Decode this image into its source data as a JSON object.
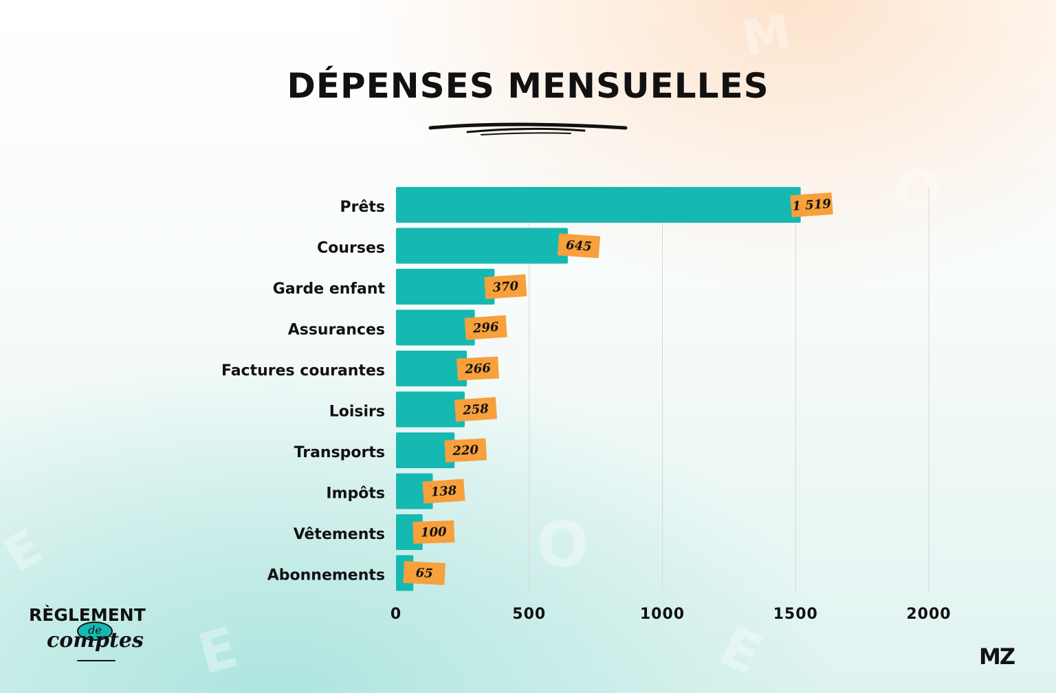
{
  "chart_data": {
    "type": "bar",
    "orientation": "horizontal",
    "title": "DÉPENSES MENSUELLES",
    "categories": [
      "Prêts",
      "Courses",
      "Garde enfant",
      "Assurances",
      "Factures courantes",
      "Loisirs",
      "Transports",
      "Impôts",
      "Vêtements",
      "Abonnements"
    ],
    "values": [
      1519,
      645,
      370,
      296,
      266,
      258,
      220,
      138,
      100,
      65
    ],
    "value_labels": [
      "1 519",
      "645",
      "370",
      "296",
      "266",
      "258",
      "220",
      "138",
      "100",
      "65"
    ],
    "xlim": [
      0,
      2000
    ],
    "xticks": [
      0,
      500,
      1000,
      1500,
      2000
    ],
    "xtick_labels": [
      "0",
      "500",
      "1000",
      "1500",
      "2000"
    ],
    "xlabel": "",
    "ylabel": "",
    "grid": true,
    "colors": {
      "bar": "#15b9b1",
      "value_tag": "#f7a03c"
    }
  },
  "branding": {
    "left_line1": "RÈGLEMENT",
    "left_de": "de",
    "left_line2": "comptes",
    "right_logo": "MZ"
  }
}
